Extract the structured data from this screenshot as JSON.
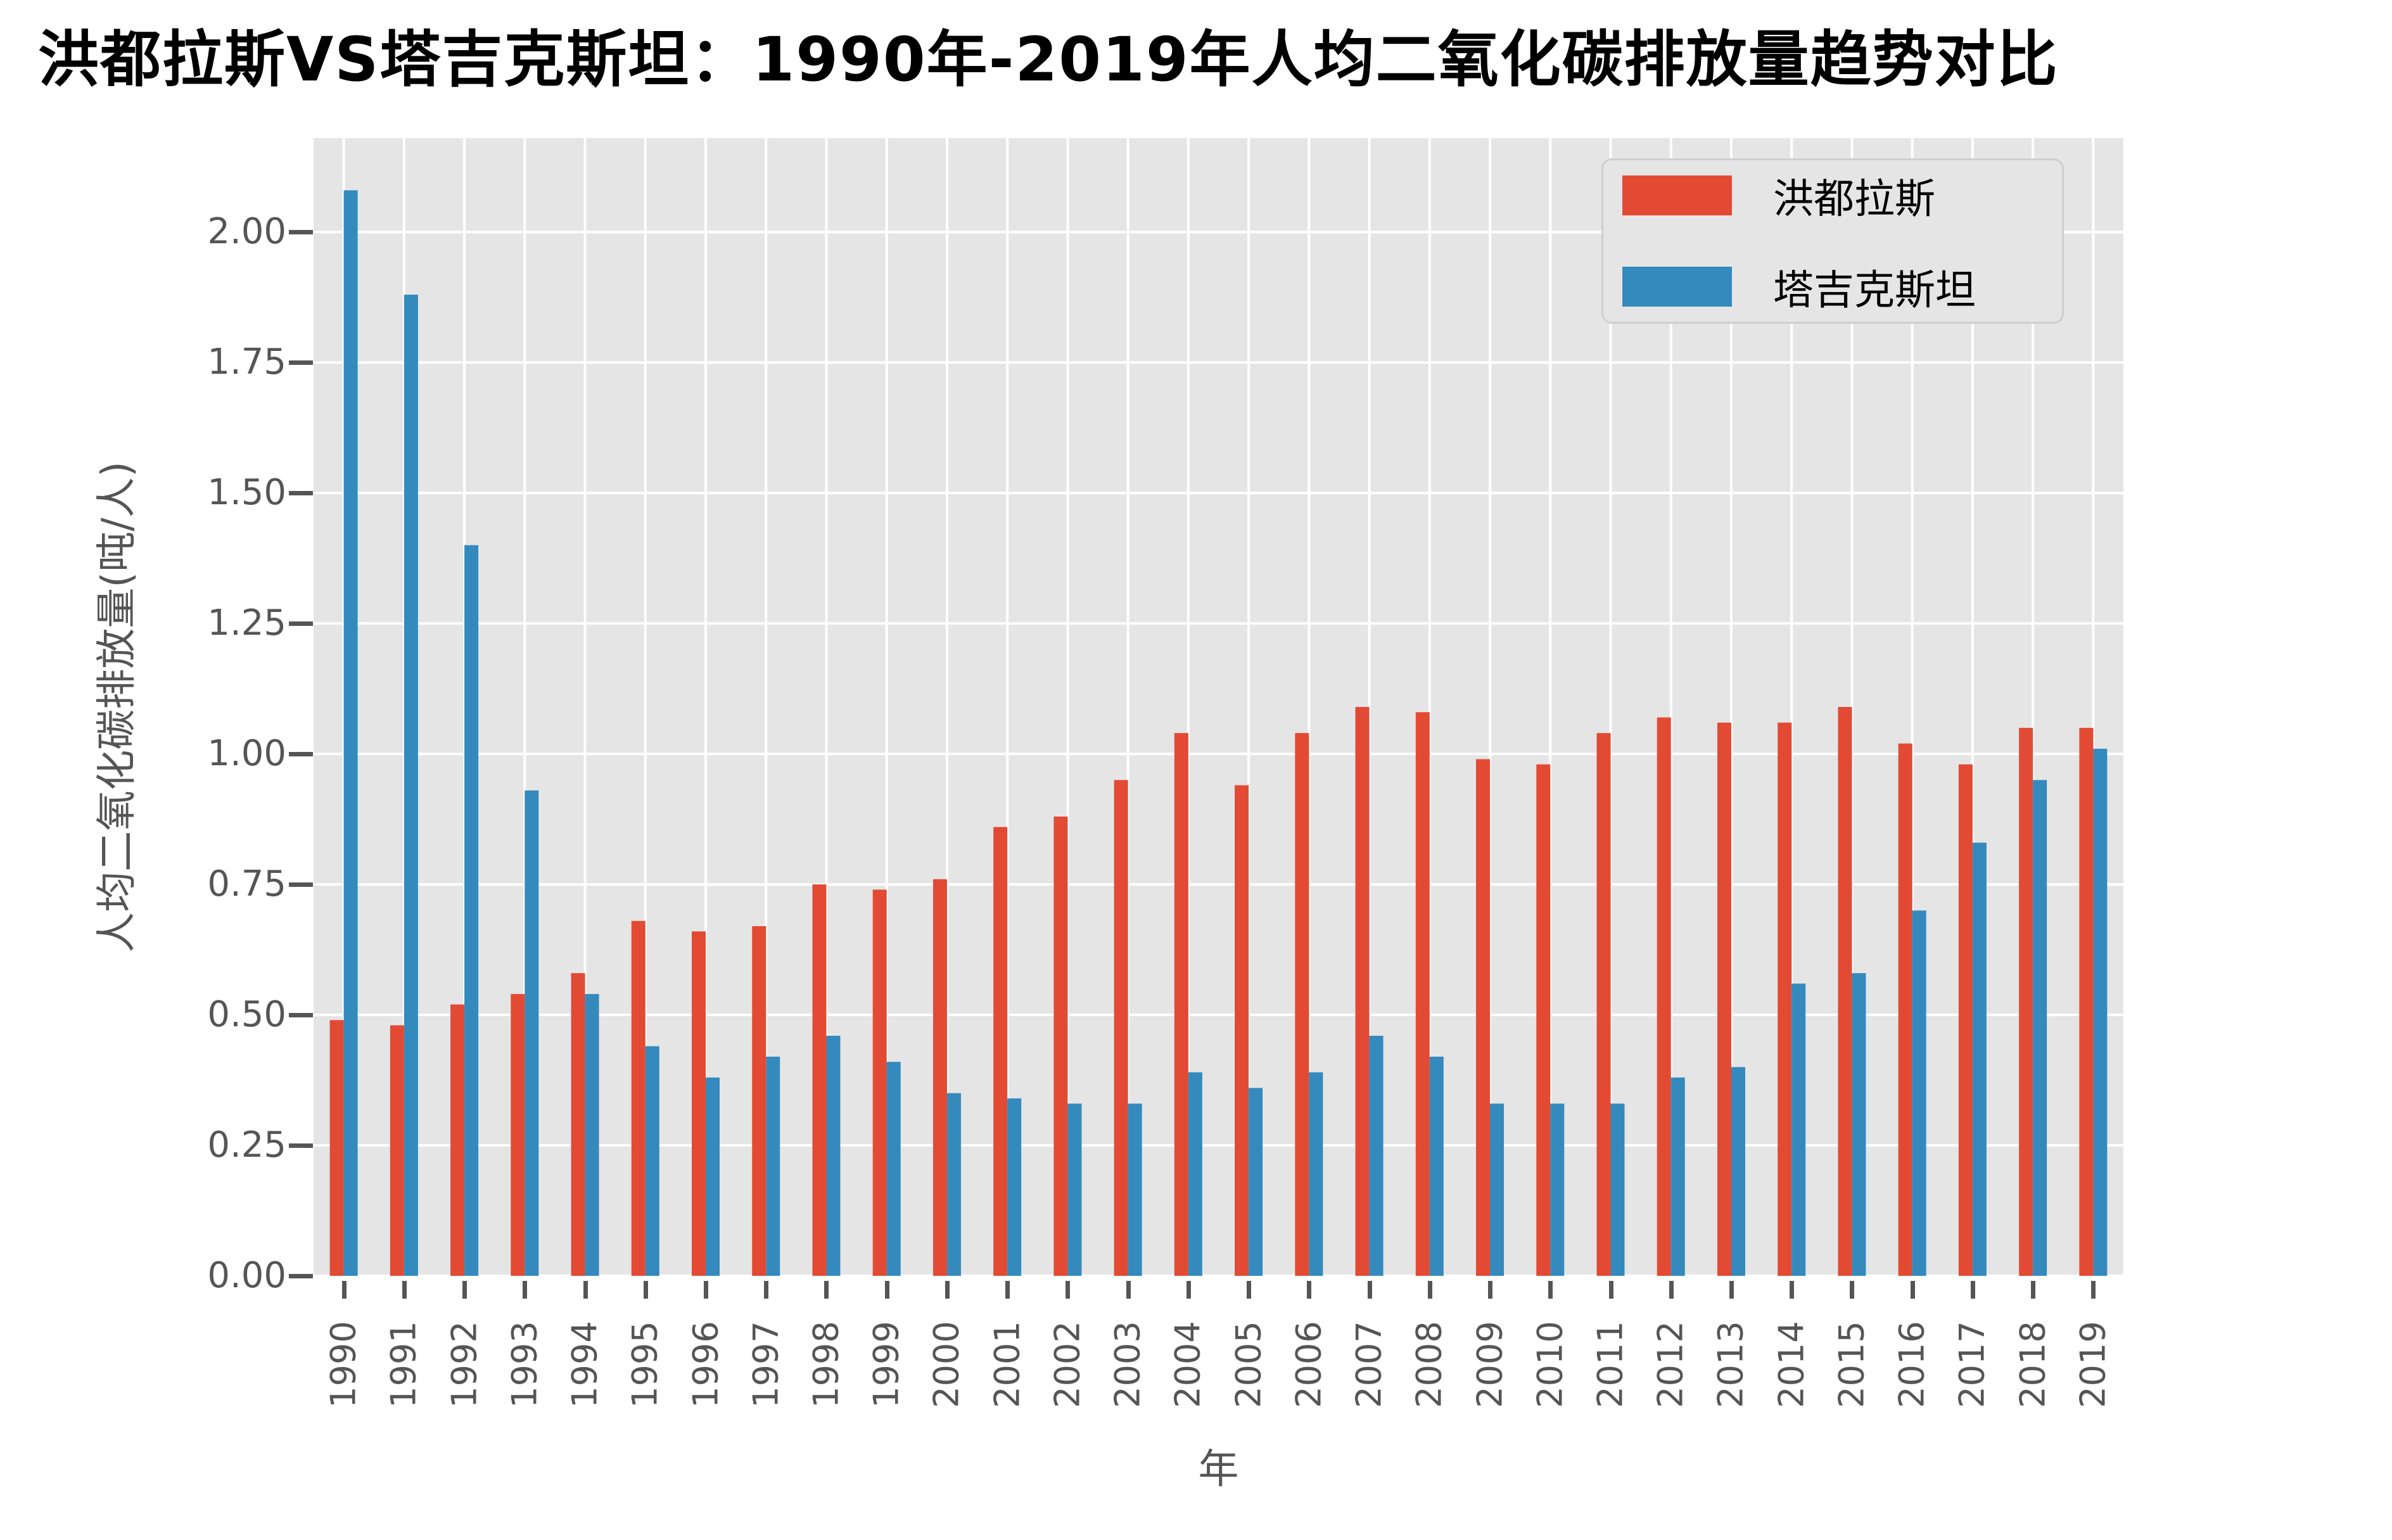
{
  "title": "洪都拉斯VS塔吉克斯坦：1990年-2019年人均二氧化碳排放量趋势对比",
  "chart_data": {
    "type": "bar",
    "title": "洪都拉斯VS塔吉克斯坦：1990年-2019年人均二氧化碳排放量趋势对比",
    "xlabel": "年",
    "ylabel": "人均二氧化碳排放量(吨/人)",
    "categories": [
      "1990",
      "1991",
      "1992",
      "1993",
      "1994",
      "1995",
      "1996",
      "1997",
      "1998",
      "1999",
      "2000",
      "2001",
      "2002",
      "2003",
      "2004",
      "2005",
      "2006",
      "2007",
      "2008",
      "2009",
      "2010",
      "2011",
      "2012",
      "2013",
      "2014",
      "2015",
      "2016",
      "2017",
      "2018",
      "2019"
    ],
    "series": [
      {
        "name": "洪都拉斯",
        "color": "#E24A33",
        "values": [
          0.49,
          0.48,
          0.52,
          0.54,
          0.58,
          0.68,
          0.66,
          0.67,
          0.75,
          0.74,
          0.76,
          0.86,
          0.88,
          0.95,
          1.04,
          0.94,
          1.04,
          1.09,
          1.08,
          0.99,
          0.98,
          1.04,
          1.07,
          1.06,
          1.06,
          1.09,
          1.02,
          0.98,
          1.05,
          1.05
        ]
      },
      {
        "name": "塔吉克斯坦",
        "color": "#348ABD",
        "values": [
          2.08,
          1.88,
          1.4,
          0.93,
          0.54,
          0.44,
          0.38,
          0.42,
          0.46,
          0.41,
          0.35,
          0.34,
          0.33,
          0.33,
          0.39,
          0.36,
          0.39,
          0.46,
          0.42,
          0.33,
          0.33,
          0.33,
          0.38,
          0.4,
          0.56,
          0.58,
          0.7,
          0.83,
          0.95,
          1.01
        ]
      }
    ],
    "y_ticks": [
      "0.00",
      "0.25",
      "0.50",
      "0.75",
      "1.00",
      "1.25",
      "1.50",
      "1.75",
      "2.00"
    ],
    "ylim": [
      0,
      2.18
    ],
    "grid": true,
    "grid_color": "#FFFFFF",
    "plot_bg": "#E5E5E5",
    "tick_color": "#555555",
    "legend_position": "upper right"
  }
}
